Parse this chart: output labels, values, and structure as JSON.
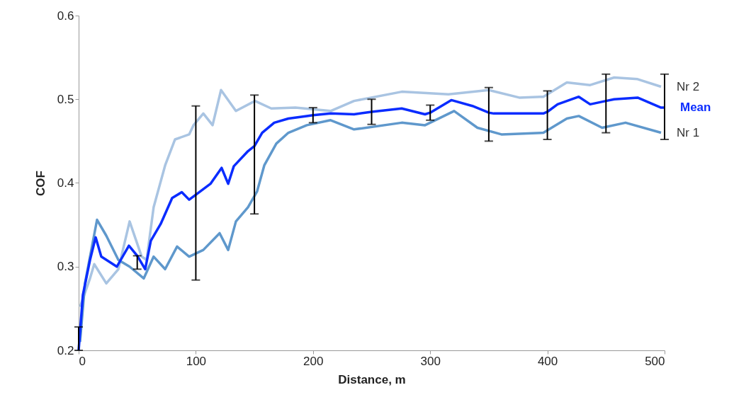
{
  "chart_data": {
    "type": "line",
    "xlabel": "Distance, m",
    "ylabel": "COF",
    "xlim": [
      0,
      500
    ],
    "ylim": [
      0.2,
      0.6
    ],
    "xticks": [
      0,
      100,
      200,
      300,
      400,
      500
    ],
    "yticks": [
      0.2,
      0.3,
      0.4,
      0.5,
      0.6
    ],
    "grid": false,
    "marker": "none",
    "line_style": "solid",
    "series": [
      {
        "name": "Nr 2",
        "color": "#a9c4e2",
        "x": [
          1.2,
          9.7,
          13.3,
          23.6,
          33.9,
          43.5,
          53.8,
          58,
          64,
          73.8,
          82.2,
          94.3,
          98,
          106.4,
          114.3,
          121.5,
          134.2,
          150.5,
          164.4,
          185,
          215,
          235,
          275.7,
          315.6,
          350,
          376,
          396.6,
          416.6,
          436.5,
          457,
          477,
          497
        ],
        "values": [
          0.252,
          0.286,
          0.303,
          0.28,
          0.297,
          0.354,
          0.312,
          0.308,
          0.371,
          0.421,
          0.452,
          0.458,
          0.469,
          0.483,
          0.469,
          0.511,
          0.486,
          0.498,
          0.489,
          0.49,
          0.486,
          0.498,
          0.509,
          0.506,
          0.511,
          0.502,
          0.503,
          0.52,
          0.517,
          0.526,
          0.524,
          0.515
        ]
      },
      {
        "name": "Nr 1",
        "color": "#5f98cc",
        "x": [
          1.2,
          5.4,
          15.7,
          23.6,
          33.9,
          43.5,
          55.6,
          64,
          73.8,
          84,
          94.3,
          106.4,
          120.3,
          127.6,
          134.2,
          144.5,
          152.3,
          158.4,
          168.7,
          179,
          194.7,
          215,
          235,
          275.7,
          295.6,
          320.4,
          340.3,
          360.8,
          396.6,
          416.6,
          426.8,
          446.7,
          466.7,
          497
        ],
        "values": [
          0.21,
          0.28,
          0.356,
          0.337,
          0.308,
          0.3,
          0.286,
          0.312,
          0.297,
          0.324,
          0.312,
          0.32,
          0.34,
          0.32,
          0.354,
          0.371,
          0.39,
          0.421,
          0.447,
          0.46,
          0.469,
          0.475,
          0.464,
          0.472,
          0.469,
          0.486,
          0.466,
          0.458,
          0.46,
          0.477,
          0.48,
          0.466,
          0.472,
          0.46
        ]
      },
      {
        "name": "Mean",
        "color": "#0a2cff",
        "x": [
          0,
          3.6,
          9.7,
          14.5,
          19.3,
          32.6,
          42.9,
          50,
          56.8,
          61.6,
          70,
          79.8,
          88,
          94.3,
          100,
          112.5,
          122,
          127.6,
          132.4,
          144.5,
          150,
          156.6,
          166.9,
          179,
          194.7,
          200,
          215.2,
          235,
          250,
          275.7,
          295.6,
          300,
          318,
          336,
          350,
          354.3,
          396.6,
          400,
          408.7,
          426.8,
          436.5,
          450,
          457,
          477,
          497,
          500
        ],
        "values": [
          0.2,
          0.266,
          0.308,
          0.335,
          0.312,
          0.3,
          0.325,
          0.313,
          0.297,
          0.331,
          0.351,
          0.382,
          0.389,
          0.38,
          0.386,
          0.399,
          0.418,
          0.399,
          0.42,
          0.438,
          0.444,
          0.46,
          0.472,
          0.477,
          0.48,
          0.481,
          0.483,
          0.482,
          0.485,
          0.489,
          0.482,
          0.484,
          0.499,
          0.492,
          0.484,
          0.483,
          0.483,
          0.485,
          0.494,
          0.503,
          0.494,
          0.498,
          0.5,
          0.502,
          0.49,
          0.49
        ],
        "errors": [
          [
            0.2,
            0.228
          ],
          null,
          null,
          null,
          null,
          null,
          null,
          [
            0.297,
            0.313
          ],
          null,
          null,
          null,
          null,
          null,
          null,
          [
            0.284,
            0.492
          ],
          null,
          null,
          null,
          null,
          null,
          [
            0.363,
            0.505
          ],
          null,
          null,
          null,
          null,
          [
            0.472,
            0.49
          ],
          null,
          null,
          [
            0.47,
            0.5
          ],
          null,
          null,
          [
            0.475,
            0.493
          ],
          null,
          null,
          [
            0.45,
            0.514
          ],
          null,
          null,
          [
            0.452,
            0.51
          ],
          null,
          null,
          null,
          [
            0.46,
            0.53
          ],
          null,
          null,
          null,
          [
            0.452,
            0.53
          ]
        ]
      }
    ]
  }
}
